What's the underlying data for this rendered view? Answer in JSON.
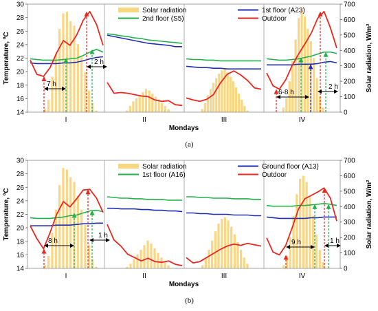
{
  "chart_data": [
    {
      "type": "line+bar",
      "caption": "(a)",
      "xlabel": "Mondays",
      "ylabel": "Temperature, ºC",
      "y2label": "Solar radiation, W/m²",
      "ylim": [
        14,
        30
      ],
      "y2lim": [
        0,
        700
      ],
      "yticks": [
        14,
        16,
        18,
        20,
        22,
        24,
        26,
        28,
        30
      ],
      "y2ticks": [
        0,
        100,
        200,
        300,
        400,
        500,
        600,
        700
      ],
      "categories": [
        "I",
        "II",
        "III",
        "IV"
      ],
      "legend": {
        "placement": "top-inside",
        "columns": 2
      },
      "series": [
        {
          "name": "Solar radiation",
          "kind": "bar",
          "axis": "y2",
          "color": "#f9d682"
        },
        {
          "name": "1st floor (A23)",
          "kind": "line",
          "axis": "y",
          "color": "#1f2fb0"
        },
        {
          "name": "2nd floor (S5)",
          "kind": "line",
          "axis": "y",
          "color": "#22b04a"
        },
        {
          "name": "Outdoor",
          "kind": "line",
          "axis": "y",
          "color": "#e8271e"
        }
      ],
      "panels": [
        {
          "label": "I",
          "solar": [
            0,
            20,
            80,
            230,
            380,
            540,
            640,
            650,
            590,
            560,
            440,
            360,
            260,
            140,
            60,
            10
          ],
          "lines": {
            "1st floor (A23)": [
              21.3,
              21.2,
              21.2,
              21.2,
              21.2,
              21.3,
              21.3,
              21.4,
              21.6,
              21.9,
              22.1,
              22.2
            ],
            "2nd floor (S5)": [
              21.9,
              21.8,
              21.7,
              21.7,
              21.7,
              21.8,
              21.9,
              22.0,
              22.4,
              22.9,
              23.3,
              22.9
            ],
            "Outdoor": [
              21.7,
              19.6,
              19.3,
              20.6,
              22.8,
              24.6,
              23.9,
              25.4,
              27.6,
              28.9,
              27.0,
              23.9
            ]
          },
          "annotations": [
            "7 h",
            "2 h"
          ]
        },
        {
          "label": "II",
          "solar": [
            0,
            10,
            40,
            70,
            90,
            110,
            130,
            150,
            140,
            120,
            100,
            80,
            60,
            40,
            20
          ],
          "lines": {
            "1st floor (A23)": [
              25.4,
              25.2,
              25.0,
              24.8,
              24.6,
              24.4,
              24.2,
              24.1,
              24.0,
              23.9,
              23.7,
              23.7
            ],
            "2nd floor (S5)": [
              25.6,
              25.5,
              25.3,
              25.2,
              25.0,
              24.9,
              24.7,
              24.6,
              24.5,
              24.4,
              24.3,
              24.2
            ],
            "Outdoor": [
              18.4,
              16.8,
              16.9,
              16.8,
              16.6,
              16.4,
              16.3,
              15.8,
              15.6,
              15.7,
              15.1,
              15.0
            ]
          },
          "annotations": []
        },
        {
          "label": "III",
          "solar": [
            0,
            20,
            60,
            110,
            150,
            190,
            220,
            250,
            270,
            280,
            260,
            230,
            200,
            160,
            120,
            80,
            40,
            10
          ],
          "lines": {
            "1st floor (A23)": [
              20.8,
              20.7,
              20.6,
              20.6,
              20.5,
              20.5,
              20.4,
              20.4,
              20.4,
              20.4,
              20.4,
              20.4
            ],
            "2nd floor (S5)": [
              21.9,
              21.8,
              21.8,
              21.7,
              21.7,
              21.6,
              21.6,
              21.6,
              21.6,
              21.6,
              21.6,
              21.6
            ],
            "Outdoor": [
              16.1,
              15.8,
              15.6,
              15.9,
              16.6,
              18.3,
              19.6,
              20.1,
              19.5,
              18.7,
              17.6,
              17.4
            ]
          },
          "annotations": []
        },
        {
          "label": "IV",
          "solar": [
            0,
            30,
            90,
            200,
            330,
            470,
            610,
            660,
            620,
            540,
            460,
            350,
            220,
            100,
            30
          ],
          "lines": {
            "1st floor (A23)": [
              21.0,
              21.0,
              21.0,
              21.0,
              21.0,
              21.1,
              21.1,
              21.1,
              21.2,
              21.4,
              21.5,
              21.3
            ],
            "2nd floor (S5)": [
              21.9,
              21.8,
              21.7,
              21.7,
              21.8,
              21.9,
              22.1,
              22.3,
              22.6,
              22.9,
              22.9,
              22.7
            ],
            "Outdoor": [
              19.8,
              17.9,
              17.4,
              18.8,
              20.9,
              22.6,
              24.1,
              25.7,
              27.9,
              28.9,
              26.5,
              23.5
            ]
          },
          "annotations": [
            "6-8 h",
            "2 h"
          ]
        }
      ]
    },
    {
      "type": "line+bar",
      "caption": "(b)",
      "xlabel": "Mondays",
      "ylabel": "Temperature, ºC",
      "y2label": "Solar radiation, W/m²",
      "ylim": [
        14,
        30
      ],
      "y2lim": [
        0,
        700
      ],
      "yticks": [
        14,
        16,
        18,
        20,
        22,
        24,
        26,
        28,
        30
      ],
      "y2ticks": [
        0,
        100,
        200,
        300,
        400,
        500,
        600,
        700
      ],
      "categories": [
        "I",
        "II",
        "III",
        "IV"
      ],
      "legend": {
        "placement": "top-inside",
        "columns": 2
      },
      "series": [
        {
          "name": "Solar radiation",
          "kind": "bar",
          "axis": "y2",
          "color": "#f9d682"
        },
        {
          "name": "Ground floor (A13)",
          "kind": "line",
          "axis": "y",
          "color": "#1f2fb0"
        },
        {
          "name": "1st floor (A16)",
          "kind": "line",
          "axis": "y",
          "color": "#22b04a"
        },
        {
          "name": "Outdoor",
          "kind": "line",
          "axis": "y",
          "color": "#e8271e"
        }
      ],
      "panels": [
        {
          "label": "I",
          "solar": [
            0,
            20,
            80,
            230,
            380,
            540,
            650,
            640,
            590,
            560,
            470,
            380,
            280,
            150,
            60,
            10
          ],
          "lines": {
            "Ground floor (A13)": [
              20.3,
              20.3,
              20.3,
              20.3,
              20.4,
              20.4,
              20.4,
              20.5,
              20.6,
              20.6,
              20.7,
              20.7
            ],
            "1st floor (A16)": [
              21.5,
              21.4,
              21.4,
              21.4,
              21.5,
              21.6,
              21.8,
              21.9,
              22.2,
              22.5,
              22.6,
              22.4
            ],
            "Outdoor": [
              20.3,
              18.4,
              16.9,
              19.3,
              22.0,
              23.9,
              23.1,
              24.3,
              25.6,
              25.7,
              24.4,
              22.3
            ]
          },
          "annotations": [
            "8 h",
            "1 h"
          ]
        },
        {
          "label": "II",
          "solar": [
            0,
            10,
            30,
            60,
            90,
            120,
            150,
            180,
            160,
            130,
            100,
            70,
            40,
            20
          ],
          "lines": {
            "Ground floor (A13)": [
              22.9,
              22.9,
              22.8,
              22.8,
              22.8,
              22.7,
              22.7,
              22.6,
              22.6,
              22.5,
              22.5,
              22.4
            ],
            "1st floor (A16)": [
              24.6,
              24.5,
              24.4,
              24.4,
              24.3,
              24.3,
              24.2,
              24.2,
              24.2,
              24.1,
              24.1,
              24.1
            ],
            "Outdoor": [
              20.5,
              18.2,
              17.3,
              16.1,
              15.6,
              15.1,
              15.5,
              15.0,
              14.9,
              15.1,
              14.6,
              14.4
            ]
          },
          "annotations": []
        },
        {
          "label": "III",
          "solar": [
            0,
            20,
            60,
            120,
            180,
            240,
            290,
            320,
            330,
            310,
            270,
            220,
            170,
            120,
            70,
            30
          ],
          "lines": {
            "Ground floor (A13)": [
              22.2,
              22.2,
              22.1,
              22.1,
              22.0,
              22.0,
              22.0,
              21.9,
              21.9,
              21.9,
              21.8,
              21.8
            ],
            "1st floor (A16)": [
              24.6,
              24.6,
              24.5,
              24.5,
              24.4,
              24.4,
              24.4,
              24.3,
              24.3,
              24.3,
              24.2,
              24.2
            ],
            "Outdoor": [
              15.6,
              14.8,
              15.0,
              15.6,
              16.2,
              16.8,
              17.3,
              17.6,
              17.4,
              17.7,
              17.5,
              17.3
            ]
          },
          "annotations": []
        },
        {
          "label": "IV",
          "solar": [
            0,
            20,
            80,
            200,
            340,
            480,
            580,
            600,
            560,
            460,
            340,
            220,
            120,
            40
          ],
          "lines": {
            "Ground floor (A13)": [
              21.6,
              21.5,
              21.4,
              21.4,
              21.4,
              21.4,
              21.4,
              21.5,
              21.5,
              21.6,
              21.6,
              21.6
            ],
            "1st floor (A16)": [
              23.3,
              23.2,
              23.2,
              23.2,
              23.2,
              23.3,
              23.3,
              23.4,
              23.5,
              23.6,
              23.5,
              23.3
            ],
            "Outdoor": [
              18.5,
              16.4,
              16.0,
              17.4,
              20.0,
              22.8,
              24.3,
              24.8,
              25.3,
              25.9,
              24.4,
              21.0
            ]
          },
          "annotations": [
            "9 h",
            "1 h"
          ]
        }
      ]
    }
  ]
}
